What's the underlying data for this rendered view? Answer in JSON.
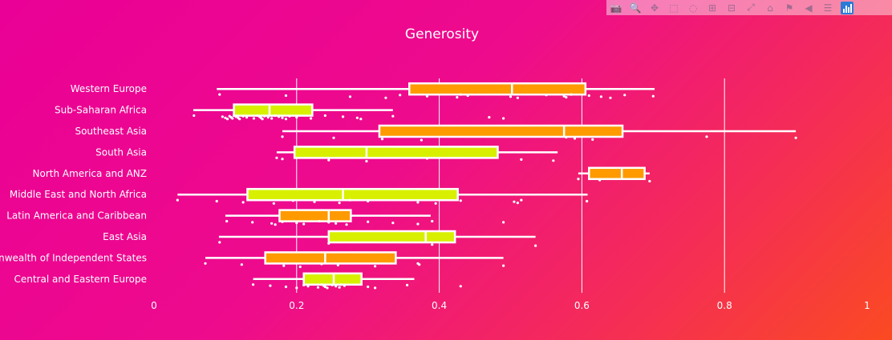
{
  "toolbar": {
    "buttons": [
      "camera-icon",
      "zoom-icon",
      "pan-icon",
      "box-select-icon",
      "lasso-icon",
      "zoom-in-icon",
      "zoom-out-icon",
      "autoscale-icon",
      "reset-axes-icon",
      "spike-lines-icon",
      "hover-closest-icon",
      "hover-compare-icon",
      "plotly-logo"
    ]
  },
  "colors": {
    "box_orange": "#ff9a00",
    "box_lime": "#d8f000",
    "line": "#ffffff"
  },
  "chart_data": {
    "type": "box",
    "title": "Generosity",
    "orientation": "horizontal",
    "xlim": [
      0,
      1
    ],
    "xticks": [
      0,
      0.2,
      0.4,
      0.6,
      0.8,
      1
    ],
    "xtick_labels": [
      "0",
      "0.2",
      "0.4",
      "0.6",
      "0.8",
      "1"
    ],
    "grid": true,
    "categories": [
      "Western Europe",
      "Sub-Saharan Africa",
      "Southeast Asia",
      "South Asia",
      "North America and ANZ",
      "Middle East and North Africa",
      "Latin America and Caribbean",
      "East Asia",
      "Commonwealth of Independent States",
      "Central and Eastern Europe"
    ],
    "boxes": [
      {
        "name": "Western Europe",
        "min": 0.088,
        "q1": 0.358,
        "median": 0.502,
        "q3": 0.605,
        "max": 0.702,
        "color": "orange",
        "points": [
          0.092,
          0.185,
          0.275,
          0.325,
          0.345,
          0.383,
          0.425,
          0.43,
          0.44,
          0.5,
          0.51,
          0.55,
          0.575,
          0.578,
          0.585,
          0.61,
          0.627,
          0.64,
          0.66,
          0.7
        ]
      },
      {
        "name": "Sub-Saharan Africa",
        "min": 0.055,
        "q1": 0.112,
        "median": 0.162,
        "q3": 0.222,
        "max": 0.335,
        "color": "lime",
        "points": [
          0.056,
          0.096,
          0.1,
          0.103,
          0.106,
          0.108,
          0.11,
          0.112,
          0.115,
          0.118,
          0.12,
          0.125,
          0.13,
          0.14,
          0.145,
          0.148,
          0.15,
          0.152,
          0.155,
          0.16,
          0.165,
          0.17,
          0.175,
          0.18,
          0.185,
          0.19,
          0.2,
          0.22,
          0.24,
          0.265,
          0.285,
          0.29,
          0.335,
          0.47,
          0.49
        ]
      },
      {
        "name": "Southeast Asia",
        "min": 0.18,
        "q1": 0.316,
        "median": 0.575,
        "q3": 0.657,
        "max": 0.9,
        "color": "orange",
        "points": [
          0.18,
          0.252,
          0.32,
          0.375,
          0.578,
          0.59,
          0.615,
          0.775,
          0.9
        ]
      },
      {
        "name": "South Asia",
        "min": 0.172,
        "q1": 0.197,
        "median": 0.298,
        "q3": 0.482,
        "max": 0.566,
        "color": "lime",
        "points": [
          0.172,
          0.18,
          0.245,
          0.298,
          0.383,
          0.515,
          0.56
        ]
      },
      {
        "name": "North America and ANZ",
        "min": 0.595,
        "q1": 0.61,
        "median": 0.656,
        "q3": 0.688,
        "max": 0.695,
        "color": "orange",
        "points": [
          0.595,
          0.625,
          0.695
        ]
      },
      {
        "name": "Middle East and North Africa",
        "min": 0.033,
        "q1": 0.131,
        "median": 0.265,
        "q3": 0.426,
        "max": 0.608,
        "color": "lime",
        "points": [
          0.033,
          0.088,
          0.125,
          0.168,
          0.195,
          0.225,
          0.26,
          0.275,
          0.3,
          0.37,
          0.395,
          0.43,
          0.505,
          0.51,
          0.515,
          0.607
        ]
      },
      {
        "name": "Latin America and Caribbean",
        "min": 0.1,
        "q1": 0.176,
        "median": 0.245,
        "q3": 0.276,
        "max": 0.388,
        "color": "orange",
        "points": [
          0.102,
          0.138,
          0.165,
          0.17,
          0.18,
          0.2,
          0.21,
          0.232,
          0.245,
          0.255,
          0.27,
          0.3,
          0.335,
          0.37,
          0.39,
          0.49
        ]
      },
      {
        "name": "East Asia",
        "min": 0.091,
        "q1": 0.245,
        "median": 0.381,
        "q3": 0.422,
        "max": 0.535,
        "color": "lime",
        "points": [
          0.092,
          0.245,
          0.39,
          0.535
        ]
      },
      {
        "name": "Commonwealth of Independent States",
        "min": 0.072,
        "q1": 0.156,
        "median": 0.24,
        "q3": 0.339,
        "max": 0.49,
        "color": "orange",
        "points": [
          0.072,
          0.123,
          0.182,
          0.205,
          0.235,
          0.258,
          0.31,
          0.37,
          0.372,
          0.49
        ]
      },
      {
        "name": "Central and Eastern Europe",
        "min": 0.139,
        "q1": 0.21,
        "median": 0.252,
        "q3": 0.291,
        "max": 0.365,
        "color": "lime",
        "points": [
          0.139,
          0.163,
          0.185,
          0.2,
          0.21,
          0.216,
          0.23,
          0.235,
          0.238,
          0.24,
          0.243,
          0.25,
          0.255,
          0.26,
          0.262,
          0.267,
          0.3,
          0.31,
          0.355,
          0.43
        ]
      }
    ]
  }
}
